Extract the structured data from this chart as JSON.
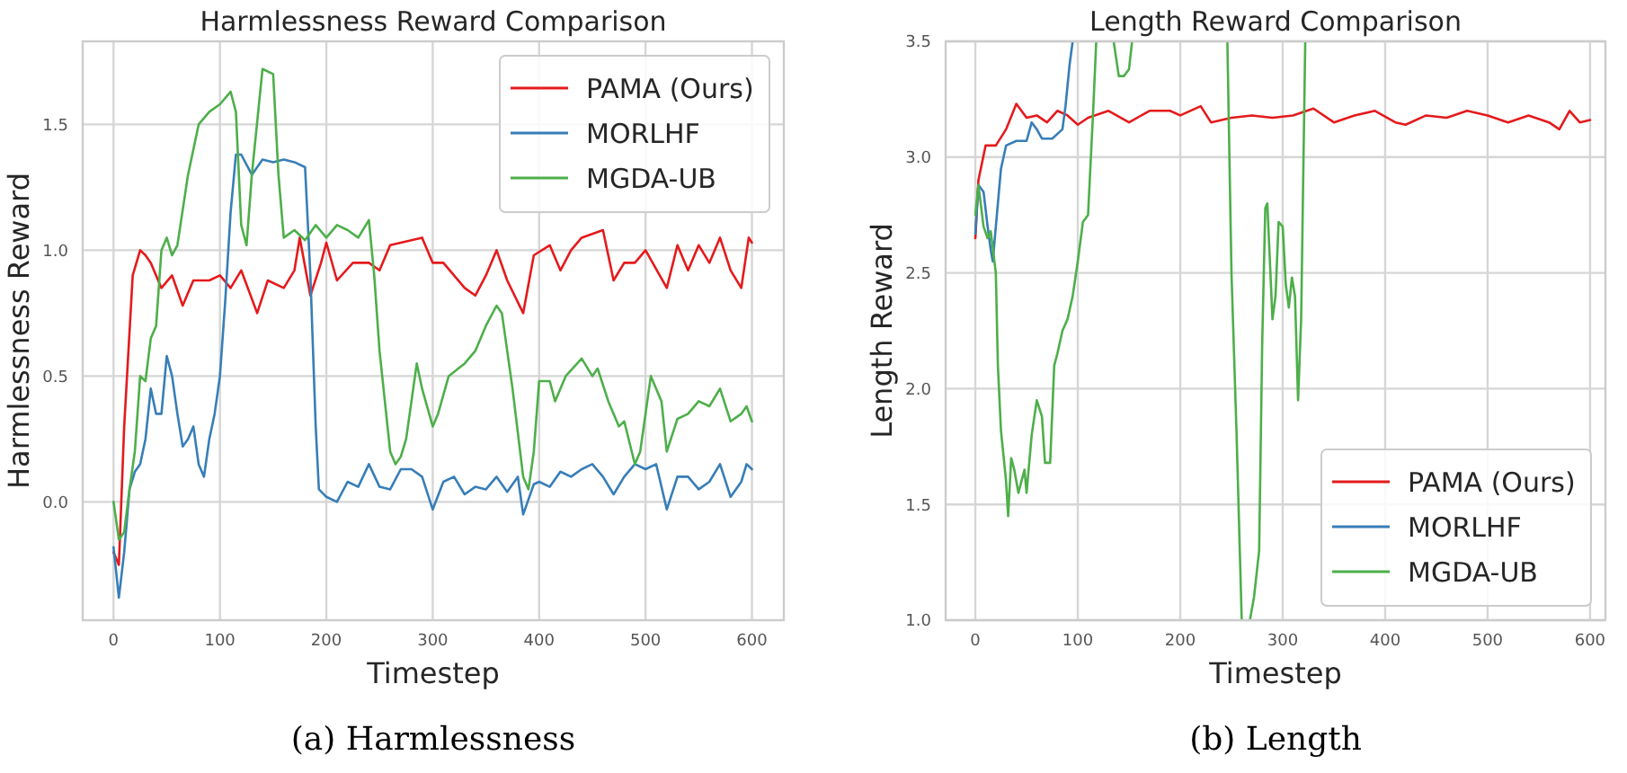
{
  "chart_data": [
    {
      "type": "line",
      "title": "Harmlessness Reward Comparison",
      "xlabel": "Timestep",
      "ylabel": "Harmlessness Reward",
      "annotations": [
        "(a) Harmlessness"
      ],
      "xlim": [
        -29,
        630
      ],
      "ylim": [
        -0.47,
        1.83
      ],
      "xticks": [
        0,
        100,
        200,
        300,
        400,
        500,
        600
      ],
      "yticks": [
        {
          "value": 0,
          "label": "0.0"
        },
        {
          "value": 0.5,
          "label": "0.5"
        },
        {
          "value": 1,
          "label": "1.0"
        },
        {
          "value": 1.5,
          "label": "1.5"
        }
      ],
      "grid": true,
      "legend": "top right",
      "series": [
        {
          "name": "PAMA (Ours)",
          "color": "#e41a1c",
          "x": [
            0,
            5,
            10,
            18,
            25,
            30,
            35,
            45,
            55,
            65,
            75,
            90,
            100,
            110,
            120,
            135,
            145,
            160,
            170,
            175,
            185,
            195,
            200,
            210,
            225,
            240,
            250,
            260,
            290,
            300,
            310,
            320,
            330,
            340,
            350,
            360,
            370,
            385,
            395,
            410,
            420,
            430,
            440,
            460,
            470,
            480,
            490,
            500,
            520,
            530,
            540,
            550,
            560,
            570,
            580,
            590,
            597,
            600
          ],
          "values": [
            -0.2,
            -0.25,
            0.3,
            0.9,
            1.0,
            0.98,
            0.95,
            0.85,
            0.9,
            0.78,
            0.88,
            0.88,
            0.9,
            0.85,
            0.92,
            0.75,
            0.88,
            0.85,
            0.92,
            1.05,
            0.82,
            0.95,
            1.03,
            0.88,
            0.95,
            0.95,
            0.92,
            1.02,
            1.05,
            0.95,
            0.95,
            0.9,
            0.85,
            0.82,
            0.9,
            1.0,
            0.88,
            0.75,
            0.98,
            1.02,
            0.92,
            1.0,
            1.05,
            1.08,
            0.88,
            0.95,
            0.95,
            1.0,
            0.85,
            1.02,
            0.92,
            1.02,
            0.95,
            1.05,
            0.92,
            0.85,
            1.05,
            1.03
          ]
        },
        {
          "name": "MORLHF",
          "color": "#377eb8",
          "x": [
            0,
            5,
            10,
            15,
            20,
            25,
            30,
            35,
            40,
            45,
            50,
            55,
            60,
            65,
            70,
            75,
            80,
            85,
            90,
            95,
            100,
            105,
            110,
            115,
            120,
            130,
            140,
            150,
            160,
            170,
            180,
            185,
            190,
            193,
            200,
            210,
            220,
            230,
            240,
            250,
            260,
            270,
            280,
            290,
            300,
            310,
            320,
            330,
            340,
            350,
            360,
            370,
            380,
            385,
            395,
            400,
            410,
            420,
            430,
            440,
            450,
            460,
            470,
            480,
            490,
            500,
            510,
            520,
            530,
            540,
            550,
            560,
            570,
            580,
            590,
            595,
            600
          ],
          "values": [
            -0.18,
            -0.38,
            -0.2,
            0.05,
            0.12,
            0.15,
            0.25,
            0.45,
            0.35,
            0.35,
            0.58,
            0.5,
            0.35,
            0.22,
            0.25,
            0.3,
            0.15,
            0.1,
            0.25,
            0.35,
            0.5,
            0.8,
            1.15,
            1.38,
            1.38,
            1.3,
            1.36,
            1.35,
            1.36,
            1.35,
            1.33,
            0.9,
            0.3,
            0.05,
            0.02,
            0.0,
            0.08,
            0.06,
            0.15,
            0.06,
            0.05,
            0.13,
            0.13,
            0.1,
            -0.03,
            0.08,
            0.1,
            0.03,
            0.06,
            0.05,
            0.1,
            0.04,
            0.1,
            -0.05,
            0.07,
            0.08,
            0.06,
            0.12,
            0.1,
            0.13,
            0.15,
            0.1,
            0.03,
            0.1,
            0.15,
            0.13,
            0.15,
            -0.03,
            0.1,
            0.1,
            0.05,
            0.08,
            0.15,
            0.02,
            0.08,
            0.15,
            0.13
          ]
        },
        {
          "name": "MGDA-UB",
          "color": "#4daf4a",
          "x": [
            0,
            5,
            10,
            15,
            20,
            25,
            30,
            35,
            40,
            45,
            50,
            55,
            60,
            70,
            80,
            90,
            100,
            110,
            115,
            120,
            125,
            130,
            140,
            150,
            155,
            160,
            170,
            180,
            190,
            200,
            210,
            220,
            230,
            240,
            245,
            250,
            260,
            265,
            270,
            275,
            285,
            290,
            300,
            305,
            315,
            330,
            340,
            350,
            360,
            365,
            375,
            385,
            390,
            395,
            400,
            410,
            415,
            425,
            440,
            450,
            455,
            465,
            475,
            480,
            490,
            495,
            505,
            515,
            520,
            530,
            540,
            550,
            560,
            570,
            580,
            590,
            595,
            600
          ],
          "values": [
            0.0,
            -0.15,
            -0.12,
            0.05,
            0.2,
            0.5,
            0.48,
            0.65,
            0.7,
            1.0,
            1.05,
            0.98,
            1.02,
            1.3,
            1.5,
            1.55,
            1.58,
            1.63,
            1.55,
            1.1,
            1.02,
            1.3,
            1.72,
            1.7,
            1.3,
            1.05,
            1.08,
            1.04,
            1.1,
            1.05,
            1.1,
            1.08,
            1.05,
            1.12,
            0.9,
            0.6,
            0.2,
            0.15,
            0.18,
            0.25,
            0.55,
            0.45,
            0.3,
            0.35,
            0.5,
            0.55,
            0.6,
            0.7,
            0.78,
            0.75,
            0.45,
            0.1,
            0.05,
            0.2,
            0.48,
            0.48,
            0.4,
            0.5,
            0.57,
            0.5,
            0.53,
            0.4,
            0.3,
            0.32,
            0.15,
            0.2,
            0.5,
            0.4,
            0.2,
            0.33,
            0.35,
            0.4,
            0.38,
            0.45,
            0.32,
            0.35,
            0.38,
            0.32
          ]
        }
      ]
    },
    {
      "type": "line",
      "title": "Length Reward Comparison",
      "xlabel": "Timestep",
      "ylabel": "Length Reward",
      "annotations": [
        "(b) Length"
      ],
      "xlim": [
        -29,
        615
      ],
      "ylim": [
        1.0,
        3.5
      ],
      "xticks": [
        0,
        100,
        200,
        300,
        400,
        500,
        600
      ],
      "yticks": [
        {
          "value": 1,
          "label": "1.0"
        },
        {
          "value": 1.5,
          "label": "1.5"
        },
        {
          "value": 2,
          "label": "2.0"
        },
        {
          "value": 2.5,
          "label": "2.5"
        },
        {
          "value": 3,
          "label": "3.0"
        },
        {
          "value": 3.5,
          "label": "3.5"
        }
      ],
      "grid": true,
      "legend": "bottom right",
      "series": [
        {
          "name": "PAMA (Ours)",
          "color": "#e41a1c",
          "x": [
            0,
            3,
            10,
            20,
            30,
            40,
            50,
            60,
            70,
            80,
            90,
            100,
            110,
            130,
            150,
            170,
            190,
            200,
            220,
            230,
            250,
            270,
            290,
            310,
            330,
            350,
            370,
            390,
            410,
            420,
            440,
            460,
            480,
            500,
            520,
            540,
            560,
            570,
            580,
            590,
            600
          ],
          "values": [
            2.65,
            2.9,
            3.05,
            3.05,
            3.12,
            3.23,
            3.17,
            3.18,
            3.15,
            3.2,
            3.18,
            3.14,
            3.17,
            3.2,
            3.15,
            3.2,
            3.2,
            3.18,
            3.22,
            3.15,
            3.17,
            3.18,
            3.17,
            3.18,
            3.21,
            3.15,
            3.18,
            3.2,
            3.15,
            3.14,
            3.18,
            3.17,
            3.2,
            3.18,
            3.15,
            3.18,
            3.15,
            3.12,
            3.2,
            3.15,
            3.16
          ]
        },
        {
          "name": "MORLHF",
          "color": "#377eb8",
          "x": [
            0,
            3,
            8,
            12,
            15,
            17,
            20,
            25,
            30,
            40,
            50,
            55,
            60,
            65,
            75,
            85,
            88,
            92,
            95
          ],
          "values": [
            2.67,
            2.88,
            2.85,
            2.7,
            2.6,
            2.55,
            2.7,
            2.95,
            3.05,
            3.07,
            3.07,
            3.15,
            3.12,
            3.08,
            3.08,
            3.12,
            3.22,
            3.4,
            3.5
          ]
        },
        {
          "name": "MGDA-UB",
          "color": "#4daf4a",
          "x": [
            0,
            3,
            8,
            12,
            15,
            20,
            22,
            25,
            30,
            32,
            35,
            38,
            42,
            45,
            48,
            50,
            55,
            60,
            65,
            68,
            73,
            77,
            80,
            85,
            90,
            95,
            100,
            105,
            110,
            115,
            118,
            130,
            135,
            140,
            145,
            150,
            153,
            200,
            246,
            250,
            255,
            260,
            264,
            268,
            272,
            277,
            280,
            283,
            285,
            290,
            293,
            296,
            300,
            303,
            306,
            309,
            312,
            315,
            318,
            322
          ],
          "values": [
            2.75,
            2.88,
            2.7,
            2.65,
            2.68,
            2.5,
            2.1,
            1.82,
            1.6,
            1.45,
            1.7,
            1.65,
            1.55,
            1.6,
            1.65,
            1.55,
            1.8,
            1.95,
            1.88,
            1.68,
            1.68,
            2.1,
            2.15,
            2.25,
            2.3,
            2.4,
            2.55,
            2.72,
            2.75,
            3.2,
            3.5,
            null,
            3.5,
            3.35,
            3.35,
            3.38,
            3.5,
            null,
            3.5,
            2.5,
            1.8,
            1.0,
            null,
            1.0,
            1.1,
            1.3,
            2.2,
            2.78,
            2.8,
            2.3,
            2.4,
            2.72,
            2.7,
            2.45,
            2.35,
            2.48,
            2.4,
            1.95,
            2.3,
            3.5
          ]
        }
      ]
    }
  ]
}
